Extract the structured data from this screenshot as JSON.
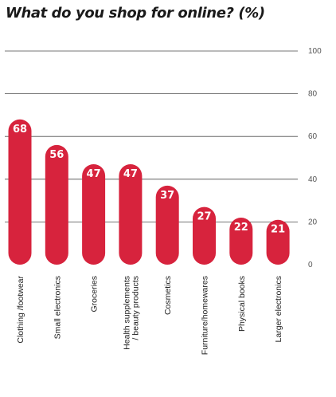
{
  "chart_data": {
    "type": "bar",
    "title": "What do you shop for online? (%)",
    "categories": [
      "Clothing /footwear",
      "Small electronics",
      "Groceries",
      "Health supplements / beauty products",
      "Cosmetics",
      "Furniture/homewares",
      "Physical books",
      "Larger electronics"
    ],
    "category_lines": [
      [
        "Clothing /footwear"
      ],
      [
        "Small electronics"
      ],
      [
        "Groceries"
      ],
      [
        "Health supplements",
        "/ beauty products"
      ],
      [
        "Cosmetics"
      ],
      [
        "Furniture/homewares"
      ],
      [
        "Physical books"
      ],
      [
        "Larger electronics"
      ]
    ],
    "values": [
      68,
      56,
      47,
      47,
      37,
      27,
      22,
      21
    ],
    "ylim": [
      0,
      100
    ],
    "yticks": [
      0,
      20,
      40,
      60,
      80,
      100
    ],
    "grid": true,
    "bar_color": "#d7233d",
    "label_color": "#ffffff"
  }
}
